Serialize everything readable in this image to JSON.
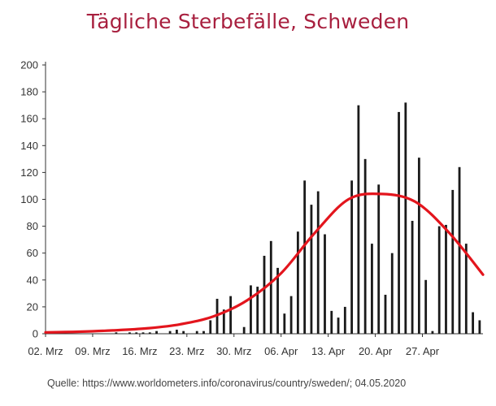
{
  "chart_data": {
    "type": "bar",
    "title": "Tägliche Sterbefälle, Schweden",
    "xlabel": "",
    "ylabel": "",
    "ylim": [
      0,
      200
    ],
    "yticks": [
      0,
      20,
      40,
      60,
      80,
      100,
      120,
      140,
      160,
      180,
      200
    ],
    "xticks": [
      "02. Mrz",
      "09. Mrz",
      "16. Mrz",
      "23. Mrz",
      "30. Mrz",
      "06. Apr",
      "13. Apr",
      "20. Apr",
      "27. Apr"
    ],
    "grid": false,
    "values": [
      0,
      0,
      0,
      0,
      0,
      0,
      0,
      0,
      0,
      0,
      1,
      0,
      1,
      1,
      1,
      1,
      2,
      0,
      2,
      3,
      2,
      0,
      2,
      2,
      10,
      26,
      18,
      28,
      0,
      5,
      36,
      35,
      58,
      69,
      49,
      15,
      28,
      76,
      114,
      96,
      106,
      74,
      17,
      12,
      20,
      114,
      170,
      130,
      67,
      111,
      29,
      60,
      165,
      172,
      84,
      131,
      40,
      2,
      80,
      81,
      107,
      124,
      67,
      16,
      10
    ],
    "trend": {
      "type": "line",
      "points": [
        [
          0,
          1
        ],
        [
          5,
          1.5
        ],
        [
          10,
          2.5
        ],
        [
          15,
          4
        ],
        [
          20,
          7
        ],
        [
          25,
          13
        ],
        [
          30,
          25
        ],
        [
          35,
          45
        ],
        [
          40,
          75
        ],
        [
          45,
          100
        ],
        [
          50,
          104
        ],
        [
          55,
          98
        ],
        [
          60,
          75
        ],
        [
          65,
          44
        ]
      ]
    },
    "colors": {
      "bars": "#1a1a1a",
      "trend": "#e3151d",
      "title": "#a8203f"
    }
  },
  "source": "Quelle: https://www.worldometers.info/coronavirus/country/sweden/; 04.05.2020"
}
